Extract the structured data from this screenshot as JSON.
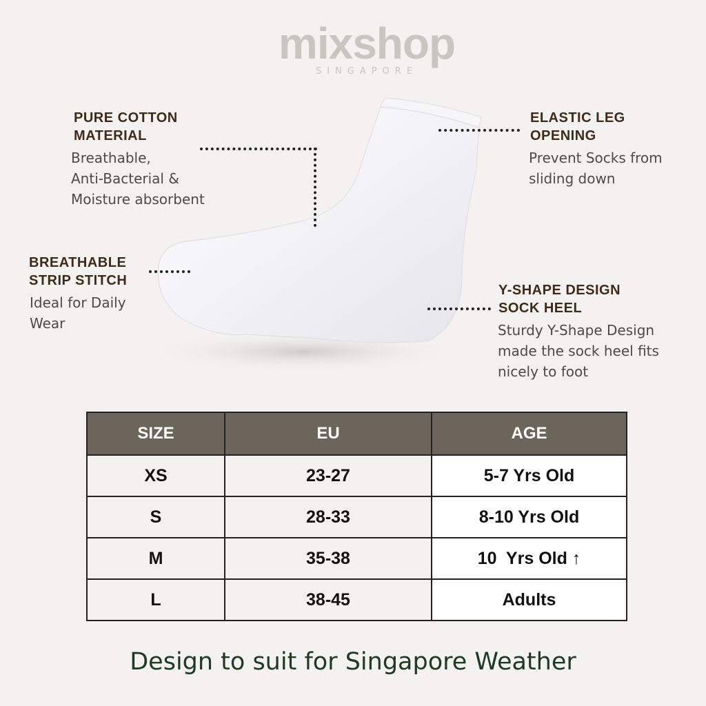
{
  "logo": {
    "brand": "mixshop",
    "sub": "SINGAPORE"
  },
  "features": [
    {
      "title_lines": [
        "PURE COTTON",
        "MATERIAL"
      ],
      "desc_lines": [
        "Breathable,",
        "Anti-Bacterial &",
        "Moisture absorbent"
      ]
    },
    {
      "title_lines": [
        "ELASTIC LEG",
        "OPENING"
      ],
      "desc_lines": [
        "Prevent Socks from",
        "sliding down"
      ]
    },
    {
      "title_lines": [
        "BREATHABLE",
        "STRIP STITCH"
      ],
      "desc_lines": [
        "Ideal for Daily",
        "Wear"
      ]
    },
    {
      "title_lines": [
        "Y-SHAPE DESIGN",
        "SOCK HEEL"
      ],
      "desc_lines": [
        "Sturdy Y-Shape Design",
        "made the sock heel fits",
        "nicely to foot"
      ]
    }
  ],
  "size_table": {
    "headers": [
      "SIZE",
      "EU",
      "AGE"
    ],
    "rows": [
      [
        "XS",
        "23-27",
        "5-7 Yrs Old"
      ],
      [
        "S",
        "28-33",
        "8-10 Yrs Old"
      ],
      [
        "M",
        "35-38",
        "10  Yrs Old ↑"
      ],
      [
        "L",
        "38-45",
        "Adults"
      ]
    ],
    "header_color": "#6b655c"
  },
  "tagline": "Design to suit for Singapore Weather"
}
